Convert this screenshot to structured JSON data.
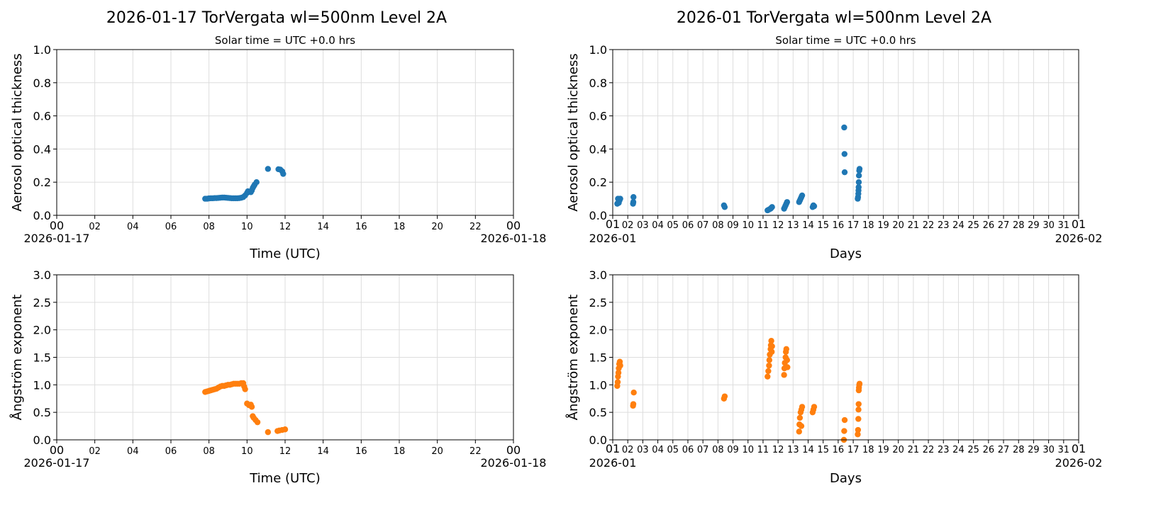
{
  "titles": {
    "left": "2026-01-17  TorVergata  wl=500nm  Level 2A",
    "right": "2026-01  TorVergata  wl=500nm  Level 2A"
  },
  "colors": {
    "aot": "#1f77b4",
    "angstrom": "#ff7f0e",
    "grid": "#dddddd"
  },
  "chart_data": [
    {
      "type": "scatter",
      "subtitle": "Solar time = UTC +0.0 hrs",
      "xlabel": "Time (UTC)",
      "ylabel": "Aerosol optical thickness",
      "xlim": [
        0,
        24
      ],
      "ylim": [
        0,
        1
      ],
      "yticks": [
        "0.0",
        "0.2",
        "0.4",
        "0.6",
        "0.8",
        "1.0"
      ],
      "xticks": [
        "00",
        "02",
        "04",
        "06",
        "08",
        "10",
        "12",
        "14",
        "16",
        "18",
        "20",
        "22",
        "00"
      ],
      "xdates": [
        "2026-01-17",
        "2026-01-18"
      ],
      "grid": true,
      "points": [
        [
          7.8,
          0.1
        ],
        [
          7.9,
          0.1
        ],
        [
          8.0,
          0.102
        ],
        [
          8.1,
          0.103
        ],
        [
          8.2,
          0.103
        ],
        [
          8.3,
          0.104
        ],
        [
          8.4,
          0.104
        ],
        [
          8.5,
          0.105
        ],
        [
          8.6,
          0.106
        ],
        [
          8.7,
          0.107
        ],
        [
          8.8,
          0.107
        ],
        [
          8.9,
          0.106
        ],
        [
          9.0,
          0.105
        ],
        [
          9.1,
          0.104
        ],
        [
          9.2,
          0.103
        ],
        [
          9.3,
          0.103
        ],
        [
          9.4,
          0.103
        ],
        [
          9.5,
          0.103
        ],
        [
          9.6,
          0.104
        ],
        [
          9.7,
          0.106
        ],
        [
          9.8,
          0.11
        ],
        [
          9.9,
          0.12
        ],
        [
          10.0,
          0.135
        ],
        [
          10.05,
          0.145
        ],
        [
          10.2,
          0.14
        ],
        [
          10.25,
          0.15
        ],
        [
          10.3,
          0.165
        ],
        [
          10.35,
          0.175
        ],
        [
          10.4,
          0.185
        ],
        [
          10.5,
          0.2
        ],
        [
          11.1,
          0.28
        ],
        [
          11.65,
          0.278
        ],
        [
          11.75,
          0.276
        ],
        [
          11.85,
          0.265
        ],
        [
          11.9,
          0.25
        ]
      ]
    },
    {
      "type": "scatter",
      "subtitle": "Solar time = UTC +0.0 hrs",
      "xlabel": "Days",
      "ylabel": "Aerosol optical thickness",
      "xlim": [
        1,
        32
      ],
      "ylim": [
        0,
        1
      ],
      "yticks": [
        "0.0",
        "0.2",
        "0.4",
        "0.6",
        "0.8",
        "1.0"
      ],
      "xticks": [
        "01",
        "02",
        "03",
        "04",
        "05",
        "06",
        "07",
        "08",
        "09",
        "10",
        "11",
        "12",
        "13",
        "14",
        "15",
        "16",
        "17",
        "18",
        "19",
        "20",
        "21",
        "22",
        "23",
        "24",
        "25",
        "26",
        "27",
        "28",
        "29",
        "30",
        "31",
        "01"
      ],
      "xdates": [
        "2026-01",
        "2026-02"
      ],
      "grid": true,
      "points": [
        [
          1.3,
          0.07
        ],
        [
          1.35,
          0.1
        ],
        [
          1.4,
          0.08
        ],
        [
          1.45,
          0.09
        ],
        [
          1.5,
          0.1
        ],
        [
          1.4,
          0.075
        ],
        [
          2.35,
          0.07
        ],
        [
          2.37,
          0.08
        ],
        [
          2.38,
          0.11
        ],
        [
          8.4,
          0.06
        ],
        [
          8.45,
          0.05
        ],
        [
          11.3,
          0.03
        ],
        [
          11.4,
          0.035
        ],
        [
          11.5,
          0.04
        ],
        [
          11.6,
          0.05
        ],
        [
          11.55,
          0.045
        ],
        [
          12.4,
          0.04
        ],
        [
          12.45,
          0.05
        ],
        [
          12.5,
          0.06
        ],
        [
          12.55,
          0.07
        ],
        [
          12.6,
          0.08
        ],
        [
          13.4,
          0.08
        ],
        [
          13.45,
          0.09
        ],
        [
          13.5,
          0.1
        ],
        [
          13.55,
          0.11
        ],
        [
          13.6,
          0.12
        ],
        [
          14.3,
          0.05
        ],
        [
          14.35,
          0.06
        ],
        [
          14.4,
          0.055
        ],
        [
          16.4,
          0.53
        ],
        [
          16.42,
          0.37
        ],
        [
          16.43,
          0.26
        ],
        [
          17.3,
          0.1
        ],
        [
          17.32,
          0.11
        ],
        [
          17.34,
          0.13
        ],
        [
          17.35,
          0.15
        ],
        [
          17.36,
          0.17
        ],
        [
          17.37,
          0.2
        ],
        [
          17.38,
          0.24
        ],
        [
          17.4,
          0.27
        ],
        [
          17.42,
          0.28
        ]
      ]
    },
    {
      "type": "scatter",
      "xlabel": "Time (UTC)",
      "ylabel": "Ångström exponent",
      "xlim": [
        0,
        24
      ],
      "ylim": [
        0,
        3
      ],
      "yticks": [
        "0.0",
        "0.5",
        "1.0",
        "1.5",
        "2.0",
        "2.5",
        "3.0"
      ],
      "xticks": [
        "00",
        "02",
        "04",
        "06",
        "08",
        "10",
        "12",
        "14",
        "16",
        "18",
        "20",
        "22",
        "00"
      ],
      "xdates": [
        "2026-01-17",
        "2026-01-18"
      ],
      "grid": true,
      "points": [
        [
          7.8,
          0.87
        ],
        [
          7.9,
          0.88
        ],
        [
          8.0,
          0.89
        ],
        [
          8.1,
          0.9
        ],
        [
          8.2,
          0.91
        ],
        [
          8.3,
          0.92
        ],
        [
          8.4,
          0.93
        ],
        [
          8.5,
          0.95
        ],
        [
          8.6,
          0.97
        ],
        [
          8.7,
          0.98
        ],
        [
          8.8,
          0.98
        ],
        [
          8.9,
          0.99
        ],
        [
          9.0,
          1.0
        ],
        [
          9.1,
          1.0
        ],
        [
          9.2,
          1.01
        ],
        [
          9.3,
          1.02
        ],
        [
          9.4,
          1.02
        ],
        [
          9.5,
          1.02
        ],
        [
          9.6,
          1.02
        ],
        [
          9.7,
          1.03
        ],
        [
          9.8,
          1.03
        ],
        [
          9.85,
          0.97
        ],
        [
          9.9,
          0.92
        ],
        [
          10.0,
          0.66
        ],
        [
          10.1,
          0.63
        ],
        [
          10.2,
          0.64
        ],
        [
          10.25,
          0.6
        ],
        [
          10.3,
          0.43
        ],
        [
          10.35,
          0.4
        ],
        [
          10.45,
          0.36
        ],
        [
          10.55,
          0.32
        ],
        [
          11.1,
          0.14
        ],
        [
          11.6,
          0.16
        ],
        [
          11.7,
          0.17
        ],
        [
          11.85,
          0.18
        ],
        [
          12.0,
          0.19
        ]
      ]
    },
    {
      "type": "scatter",
      "xlabel": "Days",
      "ylabel": "Ångström exponent",
      "xlim": [
        1,
        32
      ],
      "ylim": [
        0,
        3
      ],
      "yticks": [
        "0.0",
        "0.5",
        "1.0",
        "1.5",
        "2.0",
        "2.5",
        "3.0"
      ],
      "xticks": [
        "01",
        "02",
        "03",
        "04",
        "05",
        "06",
        "07",
        "08",
        "09",
        "10",
        "11",
        "12",
        "13",
        "14",
        "15",
        "16",
        "17",
        "18",
        "19",
        "20",
        "21",
        "22",
        "23",
        "24",
        "25",
        "26",
        "27",
        "28",
        "29",
        "30",
        "31",
        "01"
      ],
      "xdates": [
        "2026-01",
        "2026-02"
      ],
      "grid": true,
      "points": [
        [
          1.3,
          0.98
        ],
        [
          1.33,
          1.05
        ],
        [
          1.35,
          1.15
        ],
        [
          1.38,
          1.22
        ],
        [
          1.4,
          1.3
        ],
        [
          1.43,
          1.38
        ],
        [
          1.47,
          1.42
        ],
        [
          1.5,
          1.35
        ],
        [
          2.35,
          0.62
        ],
        [
          2.37,
          0.65
        ],
        [
          2.4,
          0.86
        ],
        [
          8.4,
          0.75
        ],
        [
          8.45,
          0.79
        ],
        [
          11.3,
          1.15
        ],
        [
          11.35,
          1.25
        ],
        [
          11.4,
          1.35
        ],
        [
          11.42,
          1.45
        ],
        [
          11.45,
          1.55
        ],
        [
          11.5,
          1.65
        ],
        [
          11.52,
          1.72
        ],
        [
          11.55,
          1.8
        ],
        [
          11.6,
          1.7
        ],
        [
          11.58,
          1.6
        ],
        [
          12.4,
          1.18
        ],
        [
          12.42,
          1.3
        ],
        [
          12.45,
          1.4
        ],
        [
          12.5,
          1.5
        ],
        [
          12.52,
          1.6
        ],
        [
          12.55,
          1.65
        ],
        [
          12.6,
          1.45
        ],
        [
          12.62,
          1.32
        ],
        [
          13.4,
          0.15
        ],
        [
          13.42,
          0.28
        ],
        [
          13.45,
          0.4
        ],
        [
          13.5,
          0.5
        ],
        [
          13.55,
          0.55
        ],
        [
          13.6,
          0.6
        ],
        [
          13.55,
          0.25
        ],
        [
          14.3,
          0.5
        ],
        [
          14.35,
          0.55
        ],
        [
          14.4,
          0.6
        ],
        [
          16.38,
          0.0
        ],
        [
          16.4,
          0.16
        ],
        [
          16.43,
          0.36
        ],
        [
          17.3,
          0.1
        ],
        [
          17.32,
          0.18
        ],
        [
          17.34,
          0.38
        ],
        [
          17.35,
          0.55
        ],
        [
          17.36,
          0.65
        ],
        [
          17.37,
          0.9
        ],
        [
          17.38,
          0.95
        ],
        [
          17.4,
          1.0
        ],
        [
          17.42,
          1.02
        ]
      ]
    }
  ]
}
